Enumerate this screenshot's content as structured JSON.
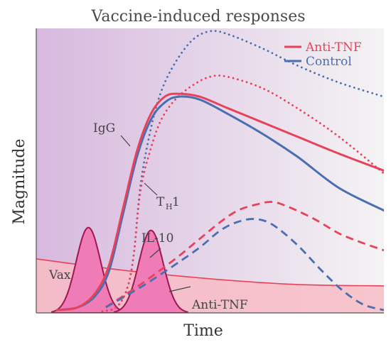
{
  "chart_data": {
    "type": "line",
    "title": "Vaccine-induced responses",
    "xlabel": "Time",
    "ylabel": "Magnitude",
    "legend": {
      "placement": "top-right",
      "entries": [
        {
          "label": "Anti-TNF",
          "color": "#e8425a"
        },
        {
          "label": "Control",
          "color": "#4a6fb0"
        }
      ]
    },
    "annotations": {
      "igg": "IgG",
      "th1_main": "T",
      "th1_sub": "H",
      "th1_tail": "1",
      "il10": "IL-10",
      "vax": "Vax",
      "anti_tnf_band": "Anti-TNF"
    },
    "colors": {
      "anti_tnf": "#e8425a",
      "control": "#4a6fb0",
      "vax": "#a0164e",
      "vax_fill": "#f07cb7",
      "band_fill": "#f8bcc6",
      "band_line": "#e8425a",
      "background_left": "#d7b9de",
      "background_right": "#f4f3f4",
      "axis": "#555555"
    },
    "note": "Conceptual plot: no numeric ticks; values are relative magnitude on 0-1 scale over time 0-1.",
    "series": [
      {
        "name": "IgG",
        "group": "Control",
        "style": "dotted",
        "points": [
          [
            0.19,
            0.005
          ],
          [
            0.23,
            0.02
          ],
          [
            0.26,
            0.08
          ],
          [
            0.28,
            0.2
          ],
          [
            0.3,
            0.45
          ],
          [
            0.33,
            0.65
          ],
          [
            0.36,
            0.78
          ],
          [
            0.4,
            0.88
          ],
          [
            0.45,
            0.96
          ],
          [
            0.5,
            0.99
          ],
          [
            0.55,
            0.98
          ],
          [
            0.65,
            0.93
          ],
          [
            0.75,
            0.87
          ],
          [
            0.87,
            0.81
          ],
          [
            1.0,
            0.76
          ]
        ]
      },
      {
        "name": "IgG",
        "group": "Anti-TNF",
        "style": "dotted",
        "points": [
          [
            0.19,
            0.005
          ],
          [
            0.23,
            0.02
          ],
          [
            0.26,
            0.08
          ],
          [
            0.28,
            0.2
          ],
          [
            0.3,
            0.43
          ],
          [
            0.33,
            0.58
          ],
          [
            0.36,
            0.68
          ],
          [
            0.4,
            0.75
          ],
          [
            0.45,
            0.8
          ],
          [
            0.5,
            0.83
          ],
          [
            0.55,
            0.83
          ],
          [
            0.65,
            0.79
          ],
          [
            0.75,
            0.72
          ],
          [
            0.87,
            0.62
          ],
          [
            1.0,
            0.49
          ]
        ]
      },
      {
        "name": "TH1",
        "group": "Control",
        "style": "solid",
        "points": [
          [
            0.06,
            0.01
          ],
          [
            0.12,
            0.02
          ],
          [
            0.17,
            0.06
          ],
          [
            0.21,
            0.15
          ],
          [
            0.25,
            0.35
          ],
          [
            0.29,
            0.55
          ],
          [
            0.33,
            0.68
          ],
          [
            0.37,
            0.74
          ],
          [
            0.41,
            0.76
          ],
          [
            0.47,
            0.75
          ],
          [
            0.55,
            0.7
          ],
          [
            0.65,
            0.63
          ],
          [
            0.75,
            0.55
          ],
          [
            0.87,
            0.44
          ],
          [
            1.0,
            0.36
          ]
        ]
      },
      {
        "name": "TH1",
        "group": "Anti-TNF",
        "style": "solid",
        "points": [
          [
            0.06,
            0.01
          ],
          [
            0.12,
            0.02
          ],
          [
            0.17,
            0.07
          ],
          [
            0.21,
            0.17
          ],
          [
            0.25,
            0.37
          ],
          [
            0.29,
            0.57
          ],
          [
            0.33,
            0.7
          ],
          [
            0.37,
            0.76
          ],
          [
            0.41,
            0.77
          ],
          [
            0.47,
            0.76
          ],
          [
            0.55,
            0.72
          ],
          [
            0.65,
            0.67
          ],
          [
            0.75,
            0.62
          ],
          [
            0.87,
            0.56
          ],
          [
            1.0,
            0.5
          ]
        ]
      },
      {
        "name": "IL-10",
        "group": "Anti-TNF",
        "style": "dashed",
        "points": [
          [
            0.2,
            0.02
          ],
          [
            0.3,
            0.1
          ],
          [
            0.4,
            0.19
          ],
          [
            0.47,
            0.26
          ],
          [
            0.53,
            0.32
          ],
          [
            0.58,
            0.36
          ],
          [
            0.63,
            0.38
          ],
          [
            0.68,
            0.39
          ],
          [
            0.73,
            0.37
          ],
          [
            0.8,
            0.33
          ],
          [
            0.87,
            0.28
          ],
          [
            0.93,
            0.25
          ],
          [
            1.0,
            0.22
          ]
        ]
      },
      {
        "name": "IL-10",
        "group": "Control",
        "style": "dashed",
        "points": [
          [
            0.2,
            0.02
          ],
          [
            0.3,
            0.09
          ],
          [
            0.4,
            0.17
          ],
          [
            0.47,
            0.23
          ],
          [
            0.53,
            0.29
          ],
          [
            0.58,
            0.32
          ],
          [
            0.63,
            0.33
          ],
          [
            0.68,
            0.31
          ],
          [
            0.75,
            0.24
          ],
          [
            0.82,
            0.15
          ],
          [
            0.88,
            0.08
          ],
          [
            0.94,
            0.03
          ],
          [
            1.0,
            0.01
          ]
        ]
      },
      {
        "name": "Vax",
        "style": "peaks",
        "peaks": [
          {
            "x": 0.15,
            "height": 0.3,
            "width": 0.035
          },
          {
            "x": 0.33,
            "height": 0.29,
            "width": 0.035
          }
        ]
      },
      {
        "name": "Anti-TNF",
        "style": "band",
        "points": [
          [
            0.0,
            0.19
          ],
          [
            0.25,
            0.15
          ],
          [
            0.5,
            0.12
          ],
          [
            0.75,
            0.1
          ],
          [
            1.0,
            0.095
          ]
        ]
      }
    ]
  }
}
